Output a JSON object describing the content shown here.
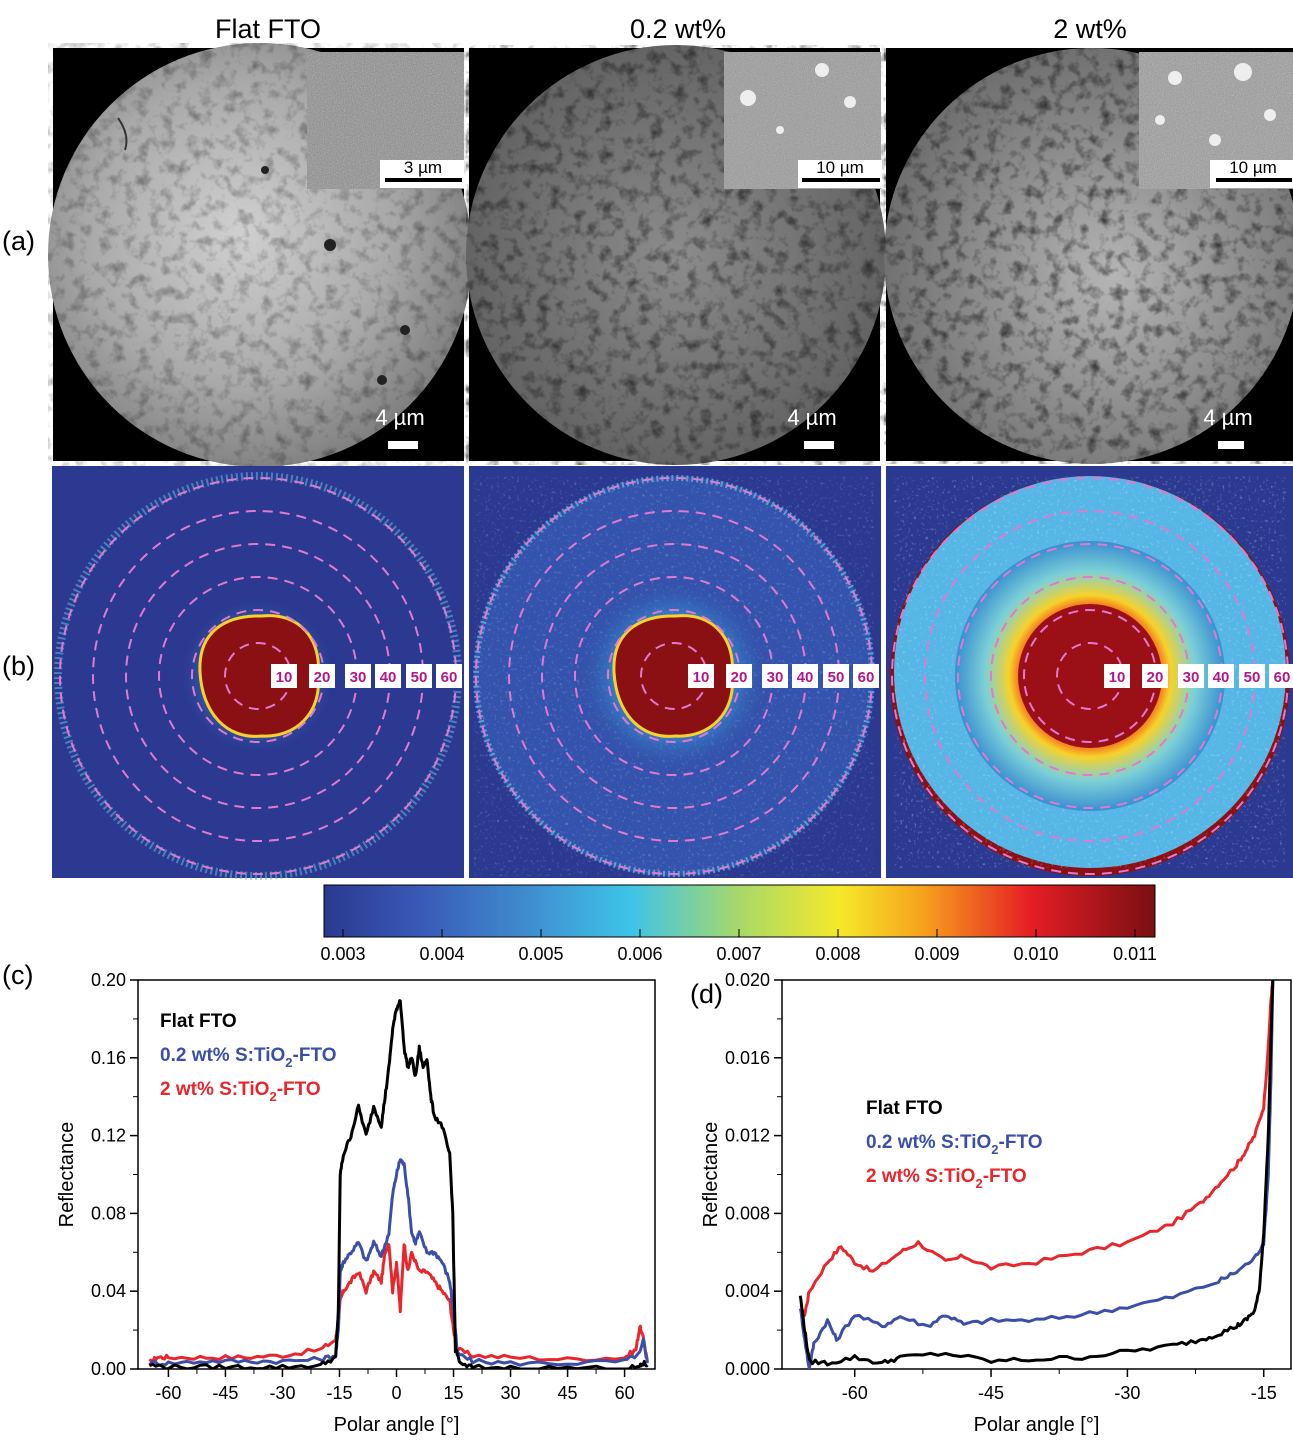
{
  "figure": {
    "panel_labels": [
      "(a)",
      "(b)",
      "(c)",
      "(d)"
    ],
    "columns": [
      {
        "title": "Flat FTO",
        "inset_scale": "3 µm",
        "image_scale": "4 µm"
      },
      {
        "title": "0.2 wt%",
        "inset_scale": "10 µm",
        "image_scale": "4 µm"
      },
      {
        "title": "2 wt%",
        "inset_scale": "10 µm",
        "image_scale": "4 µm"
      }
    ],
    "ring_labels": [
      "10",
      "20",
      "30",
      "40",
      "50",
      "60"
    ],
    "colorbar": {
      "ticks": [
        "0.003",
        "0.004",
        "0.005",
        "0.006",
        "0.007",
        "0.008",
        "0.009",
        "0.010",
        "0.011"
      ],
      "colors": [
        "#2b3990",
        "#3a5bb8",
        "#3f8fd0",
        "#3ec4e8",
        "#a8d86a",
        "#f5e92a",
        "#f6a21c",
        "#e51e25",
        "#7a0f12"
      ]
    }
  },
  "chart_data": [
    {
      "id": "c",
      "type": "line",
      "xlabel": "Polar angle [°]",
      "ylabel": "Reflectance",
      "xlim": [
        -68,
        68
      ],
      "ylim": [
        0,
        0.2
      ],
      "xticks": [
        "-60",
        "-45",
        "-30",
        "-15",
        "0",
        "15",
        "30",
        "45",
        "60"
      ],
      "yticks": [
        "0.00",
        "0.04",
        "0.08",
        "0.12",
        "0.16",
        "0.20"
      ],
      "legend": [
        {
          "name": "Flat FTO",
          "color": "#000000",
          "prefix": "Flat FTO",
          "sub": "",
          "suffix": ""
        },
        {
          "name": "0.2 wt% S:TiO2-FTO",
          "color": "#3c4fa8",
          "prefix": "0.2 wt% S:TiO",
          "sub": "2",
          "suffix": "-FTO"
        },
        {
          "name": "2 wt% S:TiO2-FTO",
          "color": "#e8262b",
          "prefix": "2 wt% S:TiO",
          "sub": "2",
          "suffix": "-FTO"
        }
      ],
      "series": [
        {
          "name": "Flat FTO",
          "color": "#000000",
          "x": [
            -65,
            -60,
            -50,
            -40,
            -30,
            -20,
            -16,
            -15.3,
            -14.8,
            -14,
            -12,
            -10,
            -8,
            -6,
            -4,
            -3,
            -2,
            -1,
            0,
            1,
            2,
            3,
            4,
            5,
            6,
            7,
            8,
            9,
            10,
            12,
            14,
            14.8,
            15.5,
            17,
            20,
            30,
            45,
            60,
            64,
            65,
            66
          ],
          "y": [
            0.002,
            0.001,
            0.001,
            0.001,
            0.001,
            0.002,
            0.006,
            0.03,
            0.1,
            0.11,
            0.12,
            0.135,
            0.12,
            0.135,
            0.125,
            0.14,
            0.155,
            0.175,
            0.185,
            0.19,
            0.165,
            0.155,
            0.16,
            0.15,
            0.165,
            0.155,
            0.16,
            0.14,
            0.13,
            0.125,
            0.11,
            0.08,
            0.01,
            0.002,
            0.001,
            0.0005,
            0.0005,
            0.0005,
            0.001,
            0.003,
            0.002
          ]
        },
        {
          "name": "0.2 wt% S:TiO2-FTO",
          "color": "#3c4fa8",
          "x": [
            -65,
            -60,
            -50,
            -40,
            -30,
            -20,
            -16,
            -15.3,
            -14.8,
            -14,
            -12,
            -10,
            -8,
            -6,
            -4,
            -2,
            -1,
            0,
            1,
            2,
            3,
            4,
            5,
            6,
            8,
            10,
            12,
            14,
            15,
            16,
            20,
            30,
            45,
            60,
            64,
            65,
            66
          ],
          "y": [
            0.003,
            0.003,
            0.004,
            0.004,
            0.004,
            0.005,
            0.007,
            0.02,
            0.05,
            0.055,
            0.06,
            0.065,
            0.055,
            0.065,
            0.058,
            0.07,
            0.09,
            0.1,
            0.108,
            0.105,
            0.09,
            0.07,
            0.065,
            0.07,
            0.06,
            0.06,
            0.055,
            0.045,
            0.03,
            0.008,
            0.004,
            0.003,
            0.003,
            0.004,
            0.008,
            0.015,
            0.003
          ]
        },
        {
          "name": "2 wt% S:TiO2-FTO",
          "color": "#e8262b",
          "x": [
            -65,
            -63,
            -60,
            -50,
            -40,
            -30,
            -20,
            -16,
            -15.3,
            -14.8,
            -14,
            -12,
            -10,
            -8,
            -6,
            -4,
            -3,
            -2,
            -1,
            0,
            1,
            2,
            3,
            4,
            6,
            8,
            10,
            12,
            14,
            15,
            16,
            20,
            30,
            45,
            60,
            63,
            64,
            65,
            66
          ],
          "y": [
            0.003,
            0.006,
            0.006,
            0.006,
            0.006,
            0.007,
            0.01,
            0.015,
            0.025,
            0.035,
            0.04,
            0.045,
            0.05,
            0.04,
            0.05,
            0.045,
            0.06,
            0.065,
            0.04,
            0.055,
            0.03,
            0.065,
            0.05,
            0.06,
            0.05,
            0.05,
            0.045,
            0.04,
            0.035,
            0.02,
            0.01,
            0.007,
            0.006,
            0.005,
            0.006,
            0.01,
            0.022,
            0.015,
            0.004
          ]
        }
      ]
    },
    {
      "id": "d",
      "type": "line",
      "xlabel": "Polar angle [°]",
      "ylabel": "Reflectance",
      "xlim": [
        -68,
        -12
      ],
      "ylim": [
        0,
        0.02
      ],
      "xticks": [
        "-60",
        "-45",
        "-30",
        "-15"
      ],
      "yticks": [
        "0.000",
        "0.004",
        "0.008",
        "0.012",
        "0.016",
        "0.020"
      ],
      "legend": [
        {
          "name": "Flat FTO",
          "color": "#000000",
          "prefix": "Flat FTO",
          "sub": "",
          "suffix": ""
        },
        {
          "name": "0.2 wt% S:TiO2-FTO",
          "color": "#3c4fa8",
          "prefix": "0.2 wt% S:TiO",
          "sub": "2",
          "suffix": "-FTO"
        },
        {
          "name": "2 wt% S:TiO2-FTO",
          "color": "#e8262b",
          "prefix": "2 wt% S:TiO",
          "sub": "2",
          "suffix": "-FTO"
        }
      ],
      "series": [
        {
          "name": "Flat FTO",
          "color": "#000000",
          "x": [
            -66,
            -65.5,
            -65,
            -63,
            -60,
            -57,
            -55,
            -50,
            -45,
            -40,
            -35,
            -30,
            -25,
            -22,
            -20,
            -18,
            -17,
            -16,
            -15.5,
            -15,
            -14.5,
            -14.2,
            -14
          ],
          "y": [
            0.0038,
            0.002,
            0.0004,
            0.0003,
            0.0006,
            0.0003,
            0.0006,
            0.0008,
            0.0004,
            0.0005,
            0.0006,
            0.0009,
            0.0012,
            0.0015,
            0.0018,
            0.0022,
            0.0025,
            0.003,
            0.004,
            0.007,
            0.012,
            0.017,
            0.02
          ]
        },
        {
          "name": "0.2 wt% S:TiO2-FTO",
          "color": "#3c4fa8",
          "x": [
            -66,
            -65.5,
            -65,
            -64.5,
            -63,
            -62,
            -60,
            -57,
            -55,
            -52,
            -50,
            -48,
            -45,
            -40,
            -35,
            -30,
            -25,
            -20,
            -18,
            -16,
            -15,
            -14.5,
            -14.2,
            -14
          ],
          "y": [
            0.0032,
            0.0015,
            0.0,
            0.0013,
            0.0025,
            0.0015,
            0.0028,
            0.0022,
            0.0027,
            0.0022,
            0.0028,
            0.0023,
            0.0025,
            0.0025,
            0.0028,
            0.0032,
            0.0037,
            0.0045,
            0.005,
            0.0057,
            0.0065,
            0.01,
            0.015,
            0.02
          ]
        },
        {
          "name": "2 wt% S:TiO2-FTO",
          "color": "#e8262b",
          "x": [
            -66,
            -65.5,
            -65,
            -63,
            -61.5,
            -60,
            -58,
            -55,
            -53,
            -50,
            -48,
            -45,
            -40,
            -35,
            -30,
            -25,
            -22,
            -20,
            -18,
            -17,
            -16,
            -15,
            -14.5,
            -14.2,
            -14
          ],
          "y": [
            0.003,
            0.0028,
            0.004,
            0.0055,
            0.0063,
            0.0055,
            0.005,
            0.006,
            0.0065,
            0.0055,
            0.0058,
            0.0052,
            0.0055,
            0.006,
            0.0065,
            0.0075,
            0.0085,
            0.0095,
            0.0105,
            0.0112,
            0.012,
            0.0135,
            0.0165,
            0.019,
            0.02
          ]
        }
      ]
    }
  ]
}
